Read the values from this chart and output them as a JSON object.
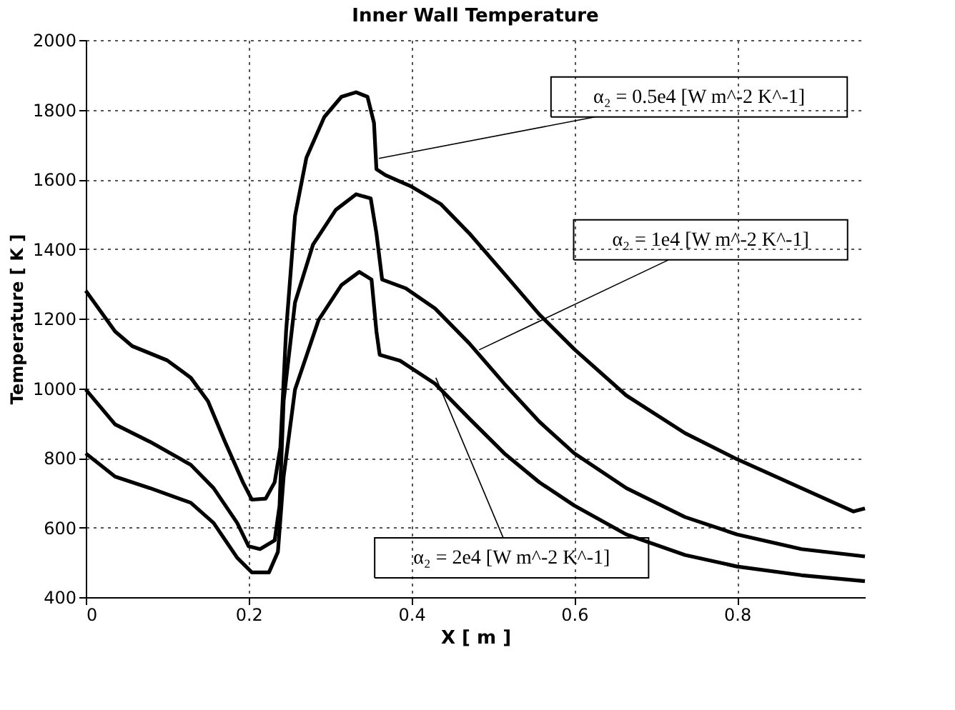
{
  "chart_data": {
    "type": "line",
    "title": "Inner Wall Temperature",
    "xlabel": "X [ m ]",
    "ylabel": "Temperature [ K ]",
    "xlim": [
      0,
      0.957
    ],
    "ylim": [
      400,
      2000
    ],
    "xticks": [
      0,
      0.2,
      0.4,
      0.6,
      0.8
    ],
    "yticks": [
      400,
      600,
      800,
      1000,
      1200,
      1400,
      1600,
      1800,
      2000
    ],
    "grid": true,
    "line_style": "solid",
    "marker": "none",
    "series": [
      {
        "color": "#000000",
        "x": [
          0,
          0.036,
          0.057,
          0.1,
          0.129,
          0.15,
          0.171,
          0.193,
          0.204,
          0.221,
          0.232,
          0.239,
          0.246,
          0.257,
          0.271,
          0.293,
          0.314,
          0.332,
          0.346,
          0.354,
          0.357,
          0.368,
          0.4,
          0.436,
          0.471,
          0.514,
          0.557,
          0.6,
          0.664,
          0.736,
          0.8,
          0.879,
          0.943,
          0.957
        ],
        "values": [
          1280,
          1163,
          1121,
          1080,
          1030,
          963,
          846,
          730,
          680,
          683,
          730,
          830,
          1163,
          1495,
          1662,
          1779,
          1837,
          1850,
          1837,
          1762,
          1629,
          1612,
          1579,
          1529,
          1445,
          1329,
          1212,
          1112,
          979,
          871,
          796,
          713,
          646,
          655
        ]
      },
      {
        "color": "#000000",
        "x": [
          0,
          0.036,
          0.079,
          0.129,
          0.157,
          0.186,
          0.2,
          0.214,
          0.232,
          0.238,
          0.243,
          0.257,
          0.279,
          0.307,
          0.332,
          0.35,
          0.357,
          0.364,
          0.393,
          0.429,
          0.471,
          0.514,
          0.557,
          0.6,
          0.664,
          0.736,
          0.8,
          0.879,
          0.957
        ],
        "values": [
          996,
          896,
          846,
          780,
          713,
          613,
          546,
          538,
          563,
          663,
          963,
          1246,
          1412,
          1512,
          1557,
          1545,
          1445,
          1312,
          1287,
          1229,
          1129,
          1013,
          904,
          813,
          713,
          630,
          580,
          538,
          517
        ]
      },
      {
        "color": "#000000",
        "x": [
          0,
          0.036,
          0.079,
          0.129,
          0.157,
          0.186,
          0.204,
          0.225,
          0.236,
          0.243,
          0.257,
          0.286,
          0.314,
          0.336,
          0.351,
          0.357,
          0.361,
          0.386,
          0.429,
          0.471,
          0.514,
          0.557,
          0.6,
          0.664,
          0.736,
          0.8,
          0.879,
          0.957
        ],
        "values": [
          813,
          746,
          713,
          671,
          613,
          513,
          471,
          471,
          530,
          746,
          996,
          1196,
          1296,
          1334,
          1312,
          1163,
          1096,
          1079,
          1013,
          913,
          813,
          730,
          663,
          580,
          521,
          488,
          463,
          446
        ]
      }
    ],
    "annotations": [
      {
        "text": "α₂ = 0.5e4 [W m^-2 K^-1]",
        "x": 0.36,
        "y": 1660
      },
      {
        "text": "α₂ = 1e4 [W m^-2 K^-1]",
        "x": 0.483,
        "y": 1110
      },
      {
        "text": "α₂ = 2e4 [W m^-2 K^-1]",
        "x": 0.43,
        "y": 1030
      }
    ]
  }
}
